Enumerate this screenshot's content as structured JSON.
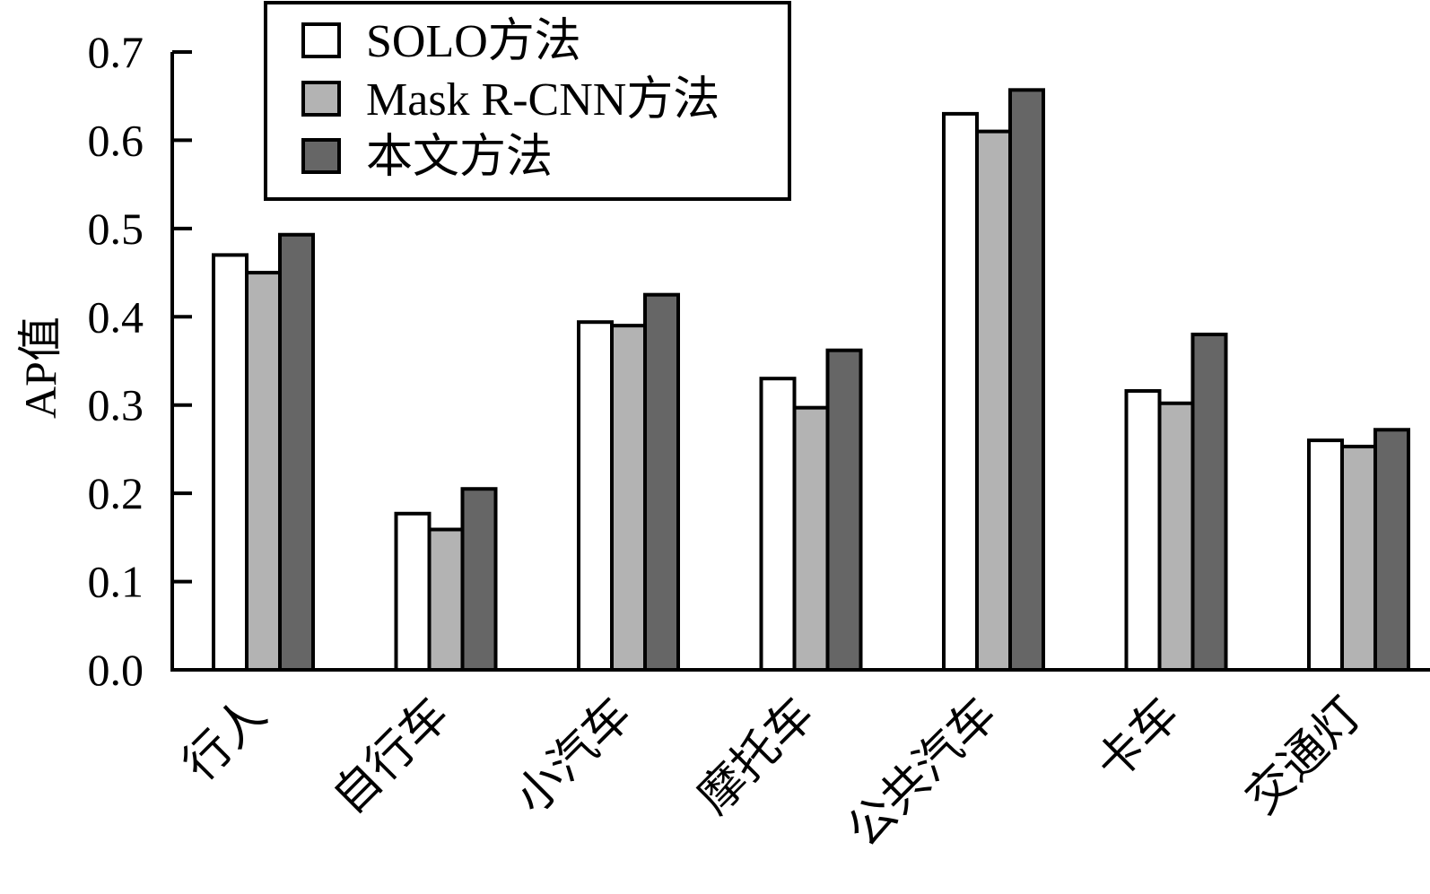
{
  "chart_data": {
    "type": "bar",
    "ylabel": "AP值",
    "xlabel": "",
    "ylim": [
      0,
      0.7
    ],
    "yticks": [
      "0.0",
      "0.1",
      "0.2",
      "0.3",
      "0.4",
      "0.5",
      "0.6",
      "0.7"
    ],
    "categories": [
      "行人",
      "自行车",
      "小汽车",
      "摩托车",
      "公共汽车",
      "卡车",
      "交通灯"
    ],
    "series": [
      {
        "name": "SOLO方法",
        "color": "#ffffff",
        "values": [
          0.47,
          0.177,
          0.394,
          0.33,
          0.63,
          0.316,
          0.26
        ]
      },
      {
        "name": "Mask R-CNN方法",
        "color": "#b3b3b3",
        "values": [
          0.45,
          0.159,
          0.39,
          0.297,
          0.61,
          0.302,
          0.253
        ]
      },
      {
        "name": "本文方法",
        "color": "#666666",
        "values": [
          0.493,
          0.205,
          0.425,
          0.362,
          0.657,
          0.38,
          0.272
        ]
      }
    ],
    "legend_position": "top-left",
    "grid": false
  }
}
